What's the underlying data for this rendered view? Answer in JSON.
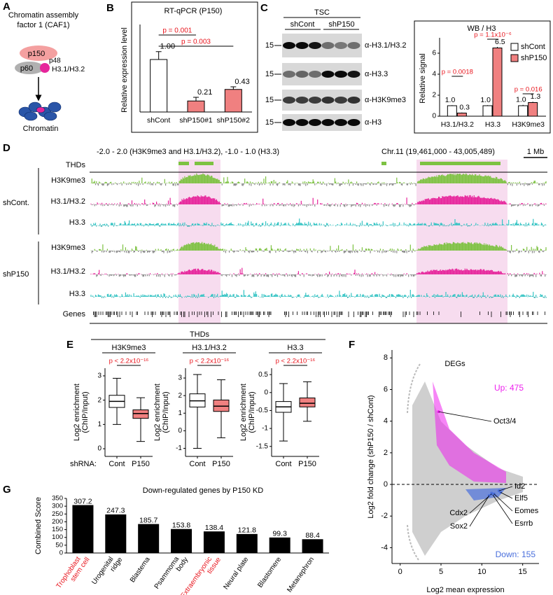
{
  "panel_labels": [
    "A",
    "B",
    "C",
    "D",
    "E",
    "F",
    "G"
  ],
  "panel_a": {
    "title": [
      "Chromatin assembly",
      "factor 1 (CAF1)"
    ],
    "p150": "p150",
    "p60": "p60",
    "p48": "p48",
    "histone": "H3.1/H3.2",
    "product": "Chromatin"
  },
  "panel_c_blot": {
    "title": "TSC",
    "groups": [
      "shCont",
      "shP150"
    ],
    "markers": [
      "15",
      "15",
      "15",
      "15"
    ],
    "antibodies": [
      "α-H3.1/H3.2",
      "α-H3.3",
      "α-H3K9me3",
      "α-H3"
    ]
  },
  "panel_d": {
    "scale_note": "-2.0 - 2.0 (H3K9me3 and H3.1/H3.2), -1.0 - 1.0 (H3.3)",
    "region": "Chr.11 (19,461,000 - 43,005,489)",
    "scale_bar": "1 Mb",
    "thd_label": "THDs",
    "groups": [
      {
        "name": "shCont.",
        "tracks": [
          "H3K9me3",
          "H3.1/H3.2",
          "H3.3"
        ]
      },
      {
        "name": "shP150",
        "tracks": [
          "H3K9me3",
          "H3.1/H3.2",
          "H3.3"
        ]
      }
    ],
    "genes_label": "Genes"
  },
  "panel_e": {
    "title": "THDs",
    "shrna_label": "shRNA:"
  },
  "chart_data": [
    {
      "type": "bar",
      "title": "RT-qPCR (P150)",
      "y_label": "Relative expression level",
      "categories": [
        "shCont",
        "shP150#1",
        "shP150#2"
      ],
      "values": [
        1.0,
        0.21,
        0.43
      ],
      "value_labels": [
        "1.00",
        "0.21",
        "0.43"
      ],
      "errors": [
        0.15,
        0.07,
        0.05
      ],
      "colors": [
        "#ffffff",
        "#f08080",
        "#f08080"
      ],
      "ylim": [
        0,
        1.6
      ],
      "annotations": [
        "p = 0.001",
        "p = 0.003"
      ],
      "annotation_color": "#e8141c"
    },
    {
      "type": "grouped_bar",
      "title": "WB / H3",
      "y_label": "Relative signal",
      "categories": [
        "H3.1/H3.2",
        "H3.3",
        "H3K9me3"
      ],
      "series": [
        {
          "name": "shCont",
          "color": "#ffffff",
          "values": [
            1.0,
            1.0,
            1.0
          ],
          "value_labels": [
            "1.0",
            "1.0",
            "1.0"
          ],
          "errors": [
            0.05,
            0.05,
            0.08
          ]
        },
        {
          "name": "shP150",
          "color": "#f08080",
          "values": [
            0.3,
            6.5,
            1.3
          ],
          "value_labels": [
            "0.3",
            "6.5",
            "1.3"
          ],
          "errors": [
            0.05,
            0.1,
            0.08
          ]
        }
      ],
      "ylim": [
        0,
        7.2
      ],
      "yticks": [
        0,
        2,
        4,
        6
      ],
      "annotations": [
        "p = 0.0018",
        "p = 1.1x10⁻⁶",
        "p = 0.016"
      ],
      "annotation_color": "#e8141c",
      "legend": "top-right"
    },
    {
      "type": "box",
      "title": "H3K9me3",
      "y_label": [
        "Log2 enrichment",
        "(ChIP/Input)"
      ],
      "categories": [
        "Cont",
        "P150"
      ],
      "colors": [
        "#ffffff",
        "#f08080"
      ],
      "boxes": [
        [
          1.0,
          1.7,
          1.95,
          2.2,
          2.9
        ],
        [
          0.3,
          1.25,
          1.45,
          1.6,
          2.1
        ]
      ],
      "ylim": [
        -0.2,
        3.2
      ],
      "yticks": [
        0,
        1,
        2,
        3
      ],
      "annotation": "p < 2.2x10⁻¹⁶",
      "annotation_color": "#e8141c"
    },
    {
      "type": "box",
      "title": "H3.1/H3.2",
      "y_label": [
        "Log2 enrichment",
        "(ChIP/Input)"
      ],
      "categories": [
        "Cont",
        "P150"
      ],
      "colors": [
        "#ffffff",
        "#f08080"
      ],
      "boxes": [
        [
          -1.0,
          1.35,
          1.7,
          2.1,
          3.2
        ],
        [
          -0.4,
          1.1,
          1.4,
          1.75,
          2.9
        ]
      ],
      "ylim": [
        -1.3,
        3.4
      ],
      "yticks": [
        -1,
        0,
        1,
        2,
        3
      ],
      "annotation": "p < 2.2x10⁻¹⁶",
      "annotation_color": "#e8141c"
    },
    {
      "type": "box",
      "title": "H3.3",
      "y_label": [
        "Log2 enrichment",
        "(ChIP/Input)"
      ],
      "categories": [
        "Cont",
        "P150"
      ],
      "colors": [
        "#ffffff",
        "#f08080"
      ],
      "boxes": [
        [
          -1.35,
          -0.55,
          -0.4,
          -0.25,
          0.25
        ],
        [
          -0.8,
          -0.4,
          -0.3,
          -0.15,
          0.3
        ]
      ],
      "ylim": [
        -1.7,
        0.6
      ],
      "yticks": [
        -1.5,
        -1,
        -0.5,
        0,
        0.5
      ],
      "annotation": "p < 2.2x10⁻¹⁶",
      "annotation_color": "#e8141c"
    },
    {
      "type": "scatter",
      "title": "DEGs",
      "x_label": "Log2 mean expression",
      "y_label": "Log2 fold change (shP150 / shCont)",
      "xlim": [
        -1,
        17
      ],
      "ylim": [
        -5,
        8.5
      ],
      "xticks": [
        0,
        5,
        10,
        15
      ],
      "yticks": [
        -4,
        -2,
        0,
        2,
        4,
        6,
        8
      ],
      "up_label": "Up: 475",
      "down_label": "Down: 155",
      "up_color": "#ee22ee",
      "down_color": "#4a6fdc",
      "genes": [
        {
          "name": "Oct3/4",
          "x": 4.7,
          "y": 4.6
        },
        {
          "name": "Id2",
          "x": 12.1,
          "y": -0.4
        },
        {
          "name": "Elf5",
          "x": 12.3,
          "y": -0.5
        },
        {
          "name": "Eomes",
          "x": 11.5,
          "y": -0.6
        },
        {
          "name": "Esrrb",
          "x": 11.2,
          "y": -0.55
        },
        {
          "name": "Cdx2",
          "x": 11.2,
          "y": -0.6
        },
        {
          "name": "Sox2",
          "x": 10.9,
          "y": -0.7
        }
      ]
    },
    {
      "type": "bar",
      "title": "Down-regulated genes by P150 KD",
      "y_label": "Combined Score",
      "categories": [
        "Trophoblast stem cell",
        "Urogenital ridge",
        "Blastema",
        "Psammoma body",
        "Extraembryonic tissue",
        "Neural plate",
        "Blastomere",
        "Metanephron"
      ],
      "label_colors": [
        "#e8141c",
        "#000000",
        "#000000",
        "#000000",
        "#e8141c",
        "#000000",
        "#000000",
        "#000000"
      ],
      "values": [
        307.2,
        247.3,
        185.7,
        153.8,
        138.4,
        121.8,
        99.3,
        88.4
      ],
      "color": "#000000",
      "ylim": [
        0,
        350
      ],
      "yticks": [
        0,
        50,
        100,
        150,
        200,
        250,
        300,
        350
      ]
    }
  ]
}
